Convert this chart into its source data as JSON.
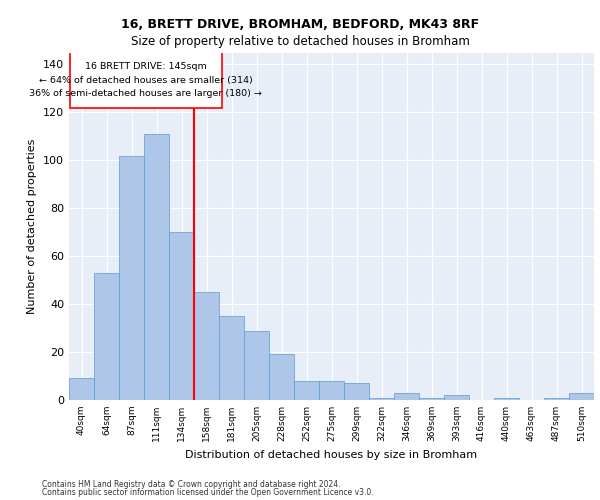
{
  "title1": "16, BRETT DRIVE, BROMHAM, BEDFORD, MK43 8RF",
  "title2": "Size of property relative to detached houses in Bromham",
  "xlabel": "Distribution of detached houses by size in Bromham",
  "ylabel": "Number of detached properties",
  "categories": [
    "40sqm",
    "64sqm",
    "87sqm",
    "111sqm",
    "134sqm",
    "158sqm",
    "181sqm",
    "205sqm",
    "228sqm",
    "252sqm",
    "275sqm",
    "299sqm",
    "322sqm",
    "346sqm",
    "369sqm",
    "393sqm",
    "416sqm",
    "440sqm",
    "463sqm",
    "487sqm",
    "510sqm"
  ],
  "values": [
    9,
    53,
    102,
    111,
    70,
    45,
    35,
    29,
    19,
    8,
    8,
    7,
    1,
    3,
    1,
    2,
    0,
    1,
    0,
    1,
    3
  ],
  "bar_color": "#aec6e8",
  "bar_edge_color": "#5a9bd4",
  "background_color": "#e8eef7",
  "grid_color": "#ffffff",
  "red_line_x": 4.5,
  "annotation_box_text": "16 BRETT DRIVE: 145sqm\n← 64% of detached houses are smaller (314)\n36% of semi-detached houses are larger (180) →",
  "ylim": [
    0,
    145
  ],
  "yticks": [
    0,
    20,
    40,
    60,
    80,
    100,
    120,
    140
  ],
  "footer1": "Contains HM Land Registry data © Crown copyright and database right 2024.",
  "footer2": "Contains public sector information licensed under the Open Government Licence v3.0."
}
